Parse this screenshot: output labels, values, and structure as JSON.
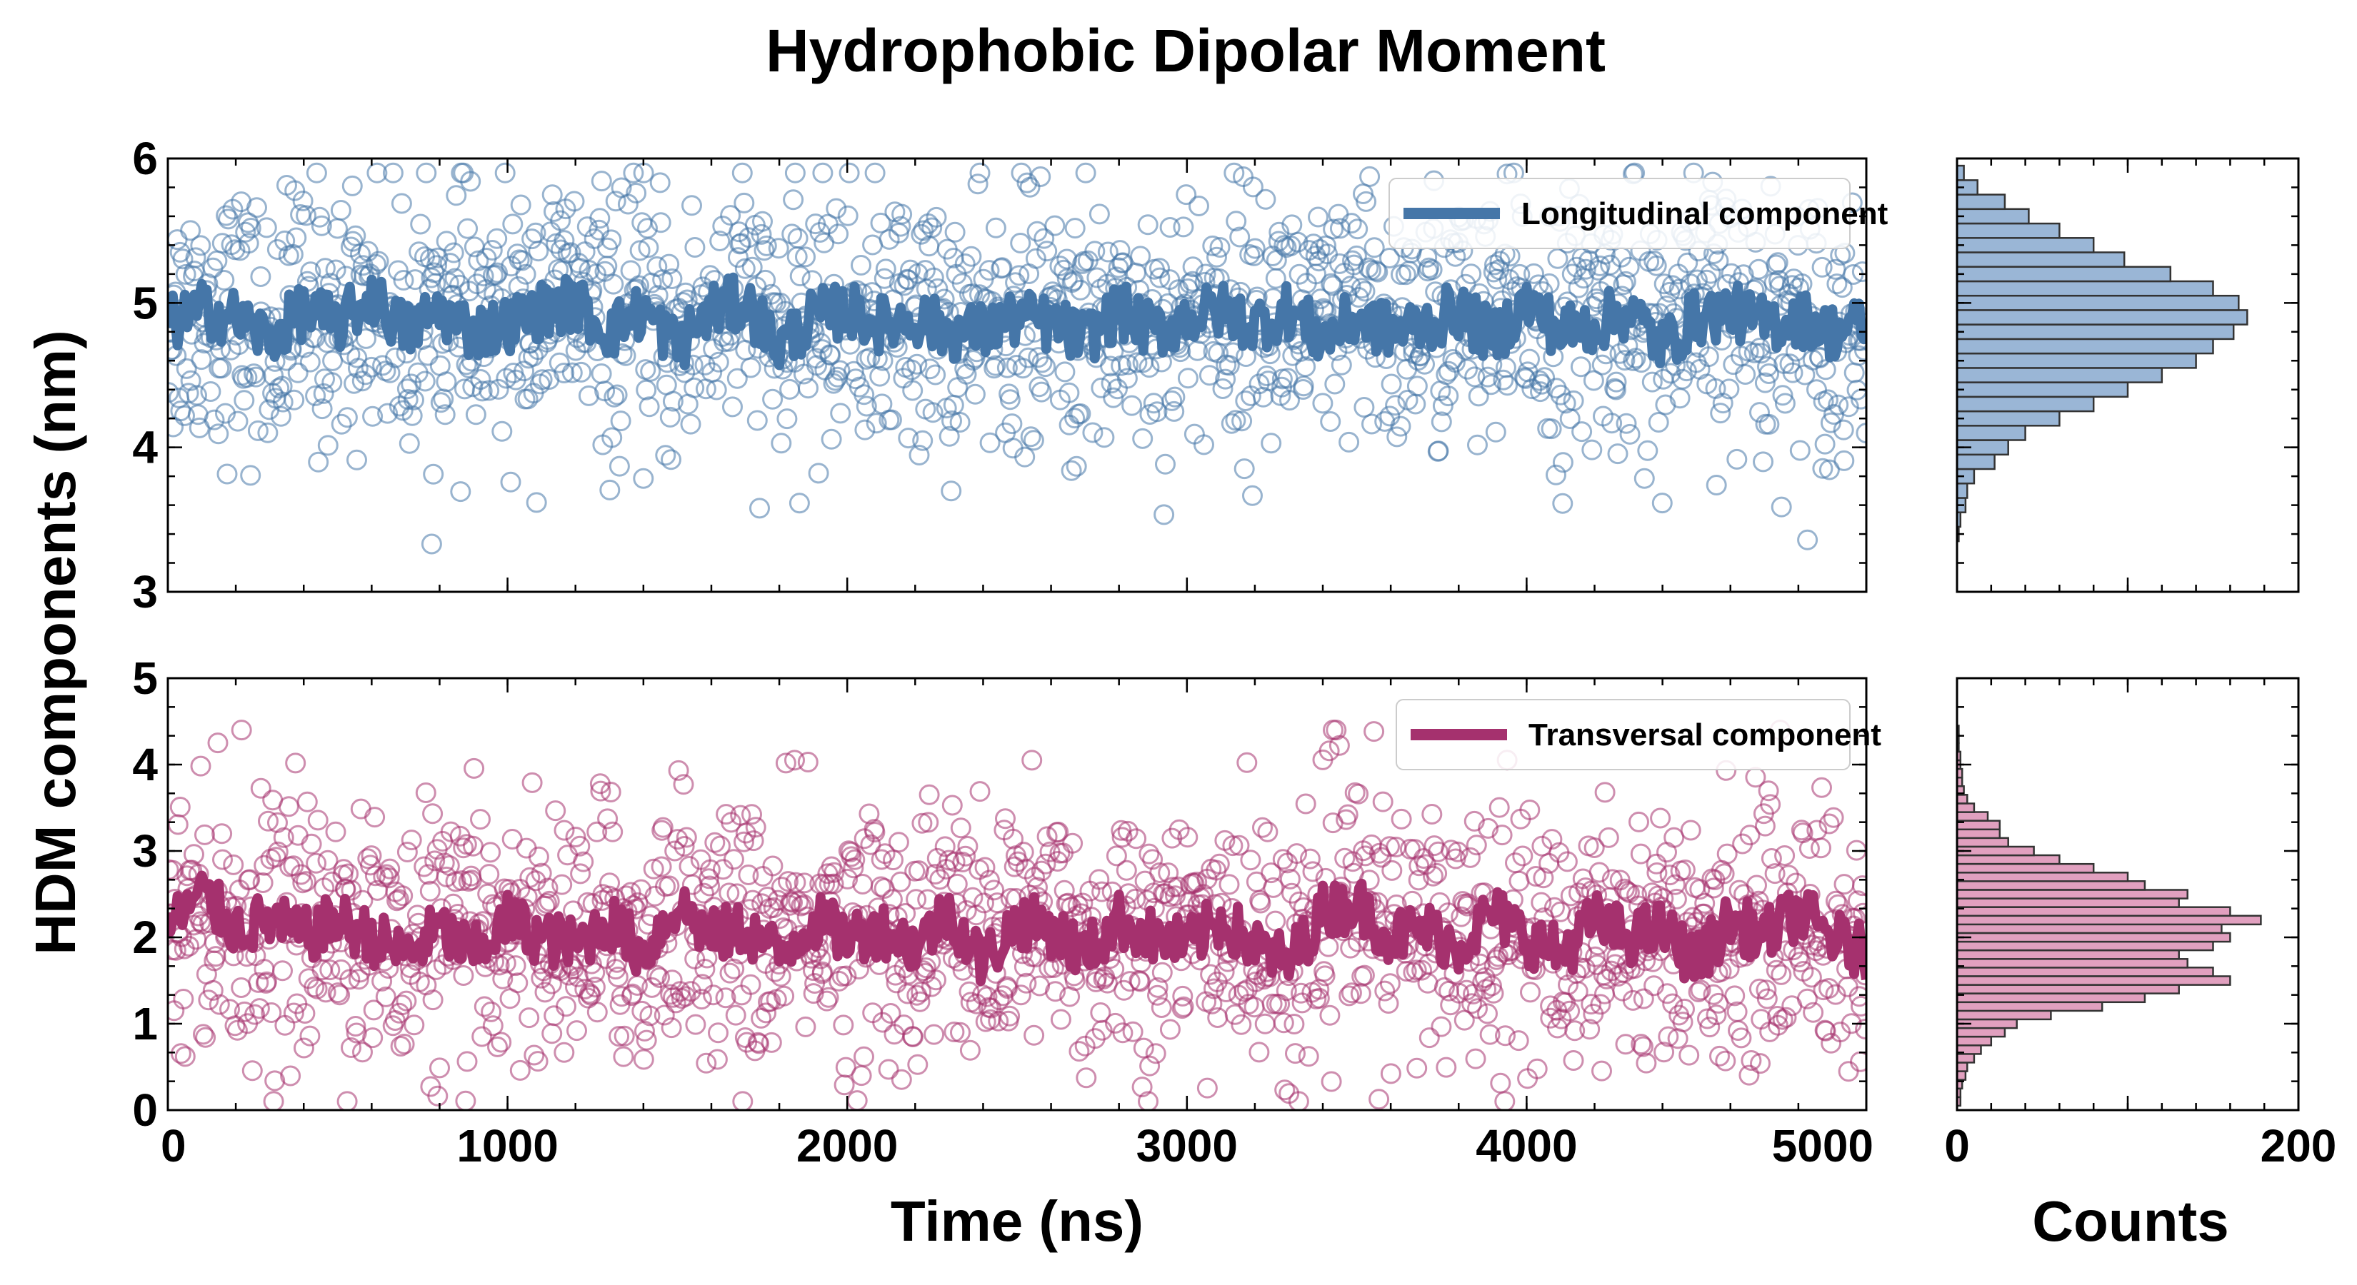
{
  "title": "Hydrophobic Dipolar Moment",
  "colors": {
    "longitudinal": "#4576a8",
    "transversal": "#a5316e",
    "longitudinal_hist": "#9ab6d6",
    "transversal_hist": "#e1a0bf"
  },
  "chart_data": [
    {
      "type": "scatter",
      "panel": "top-left",
      "ylabel": "HDM components (nm)",
      "xlim": [
        0,
        5000
      ],
      "ylim": [
        3,
        6
      ],
      "y_ticks": [
        3,
        4,
        5,
        6
      ],
      "legend_placement": "top-right",
      "series": [
        {
          "name": "Longitudinal component",
          "style": "line + open-circle scatter",
          "raw_point_spread": [
            3.3,
            5.9
          ],
          "smoothed": {
            "x": [
              0,
              100,
              200,
              300,
              400,
              500,
              600,
              700,
              800,
              900,
              1000,
              1100,
              1200,
              1300,
              1400,
              1500,
              1600,
              1700,
              1800,
              1900,
              2000,
              2100,
              2200,
              2300,
              2400,
              2500,
              2600,
              2700,
              2800,
              2900,
              3000,
              3100,
              3200,
              3300,
              3400,
              3500,
              3600,
              3700,
              3800,
              3900,
              4000,
              4100,
              4200,
              4300,
              4400,
              4500,
              4600,
              4700,
              4800,
              4900,
              5000
            ],
            "y": [
              4.85,
              4.95,
              4.9,
              4.75,
              4.95,
              4.85,
              5.05,
              4.8,
              4.95,
              4.8,
              4.85,
              4.95,
              5.0,
              4.8,
              4.95,
              4.7,
              4.95,
              5.0,
              4.7,
              4.9,
              4.95,
              4.85,
              4.9,
              4.8,
              4.8,
              4.9,
              4.85,
              4.75,
              4.95,
              4.8,
              4.9,
              4.95,
              4.85,
              4.95,
              4.75,
              4.9,
              4.8,
              4.85,
              4.95,
              4.75,
              5.0,
              4.8,
              4.85,
              4.95,
              4.7,
              4.9,
              4.95,
              4.85,
              4.9,
              4.8,
              4.85
            ]
          }
        }
      ]
    },
    {
      "type": "bar",
      "panel": "top-right",
      "orientation": "horizontal histogram",
      "xlim": [
        0,
        200
      ],
      "ylim": [
        3,
        6
      ],
      "bin_centers": [
        3.4,
        3.5,
        3.6,
        3.7,
        3.8,
        3.9,
        4.0,
        4.1,
        4.2,
        4.3,
        4.4,
        4.5,
        4.6,
        4.7,
        4.8,
        4.9,
        5.0,
        5.1,
        5.2,
        5.3,
        5.4,
        5.5,
        5.6,
        5.7,
        5.8,
        5.9
      ],
      "values": [
        1,
        2,
        5,
        6,
        10,
        22,
        30,
        40,
        60,
        80,
        100,
        120,
        140,
        150,
        162,
        170,
        165,
        150,
        125,
        98,
        80,
        60,
        42,
        28,
        12,
        4
      ]
    },
    {
      "type": "scatter",
      "panel": "bottom-left",
      "xlabel": "Time (ns)",
      "xlim": [
        0,
        5000
      ],
      "ylim": [
        0,
        5
      ],
      "x_ticks": [
        0,
        1000,
        2000,
        3000,
        4000,
        5000
      ],
      "y_ticks": [
        0,
        1,
        2,
        3,
        4,
        5
      ],
      "legend_placement": "top-right",
      "series": [
        {
          "name": "Transversal component",
          "style": "line + open-circle scatter",
          "raw_point_spread": [
            0.1,
            4.4
          ],
          "smoothed": {
            "x": [
              0,
              100,
              200,
              300,
              400,
              500,
              600,
              700,
              800,
              900,
              1000,
              1100,
              1200,
              1300,
              1400,
              1500,
              1600,
              1700,
              1800,
              1900,
              2000,
              2100,
              2200,
              2300,
              2400,
              2500,
              2600,
              2700,
              2800,
              2900,
              3000,
              3100,
              3200,
              3300,
              3400,
              3500,
              3600,
              3700,
              3800,
              3900,
              4000,
              4100,
              4200,
              4300,
              4400,
              4500,
              4600,
              4700,
              4800,
              4900,
              5000
            ],
            "y": [
              2.1,
              2.5,
              2.1,
              2.2,
              2.0,
              2.2,
              2.0,
              1.8,
              2.1,
              1.8,
              2.2,
              2.0,
              1.9,
              2.2,
              1.8,
              2.4,
              2.0,
              2.1,
              1.8,
              2.2,
              2.0,
              2.1,
              1.9,
              2.3,
              1.7,
              2.2,
              2.1,
              1.8,
              2.2,
              2.0,
              1.9,
              2.2,
              1.9,
              1.7,
              2.3,
              2.4,
              2.0,
              2.1,
              1.9,
              2.3,
              2.0,
              1.8,
              2.2,
              2.0,
              2.1,
              1.7,
              2.2,
              2.0,
              2.3,
              2.0,
              1.8
            ]
          }
        }
      ]
    },
    {
      "type": "bar",
      "panel": "bottom-right",
      "orientation": "horizontal histogram",
      "xlabel": "Counts",
      "xlim": [
        0,
        200
      ],
      "ylim": [
        0,
        5
      ],
      "x_ticks": [
        0,
        200
      ],
      "bin_centers": [
        0.1,
        0.2,
        0.3,
        0.4,
        0.5,
        0.6,
        0.7,
        0.8,
        0.9,
        1.0,
        1.1,
        1.2,
        1.3,
        1.4,
        1.5,
        1.6,
        1.7,
        1.8,
        1.9,
        2.0,
        2.1,
        2.2,
        2.3,
        2.4,
        2.5,
        2.6,
        2.7,
        2.8,
        2.9,
        3.0,
        3.1,
        3.2,
        3.3,
        3.4,
        3.5,
        3.6,
        3.7,
        3.8,
        3.9,
        4.0,
        4.1,
        4.2,
        4.3,
        4.4
      ],
      "values": [
        2,
        2,
        3,
        5,
        6,
        10,
        14,
        20,
        28,
        35,
        55,
        85,
        110,
        130,
        160,
        150,
        135,
        130,
        150,
        160,
        155,
        178,
        160,
        130,
        135,
        110,
        100,
        80,
        60,
        45,
        30,
        25,
        25,
        18,
        10,
        6,
        4,
        3,
        3,
        2,
        2,
        1,
        1,
        1
      ]
    }
  ]
}
